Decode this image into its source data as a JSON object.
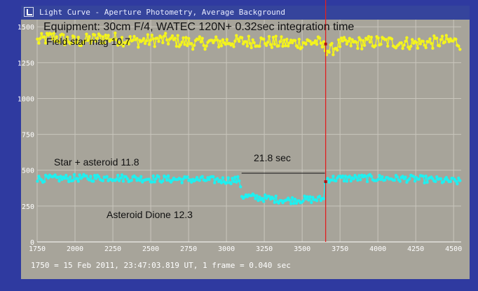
{
  "window": {
    "title": "Light Curve - Aperture Photometry, Average Background",
    "status": "1750 = 15 Feb 2011, 23:47:03.819 UT, 1 frame = 0.040 sec"
  },
  "chart_data": {
    "type": "scatter",
    "title": "Equipment: 30cm F/4,  WATEC 120N+    0.32sec integration time",
    "xlabel": "",
    "ylabel": "",
    "xlim": [
      1750,
      4550
    ],
    "ylim": [
      0,
      1550
    ],
    "x_ticks": [
      "1750",
      "2000",
      "2250",
      "2500",
      "2750",
      "3000",
      "3250",
      "3500",
      "3750",
      "4000",
      "4250",
      "4500"
    ],
    "y_ticks": [
      "0",
      "250",
      "500",
      "750",
      "1000",
      "1250",
      "1500"
    ],
    "grid": true,
    "colors": {
      "plot_bg": "#a7a49a",
      "grid": "#c9c6bd",
      "frame": "#2f3aa0",
      "comparison": "#f4f41c",
      "target": "#1ff0f0",
      "marker": "#e02020"
    },
    "series": [
      {
        "name": "",
        "points": [
          [
            1750,
            1400
          ],
          [
            1850,
            1430
          ],
          [
            2000,
            1395
          ],
          [
            2200,
            1425
          ],
          [
            2400,
            1400
          ],
          [
            2600,
            1410
          ],
          [
            2800,
            1385
          ],
          [
            3000,
            1395
          ],
          [
            3200,
            1400
          ],
          [
            3400,
            1385
          ],
          [
            3600,
            1395
          ],
          [
            3680,
            1330
          ],
          [
            3750,
            1380
          ],
          [
            4000,
            1395
          ],
          [
            4250,
            1385
          ],
          [
            4500,
            1400
          ],
          [
            4550,
            1380
          ]
        ],
        "noise": 45
      },
      {
        "name": "",
        "points": [
          [
            1750,
            440
          ],
          [
            2000,
            445
          ],
          [
            2250,
            448
          ],
          [
            2500,
            440
          ],
          [
            2750,
            435
          ],
          [
            3000,
            430
          ],
          [
            3090,
            432
          ],
          [
            3100,
            320
          ],
          [
            3250,
            305
          ],
          [
            3400,
            290
          ],
          [
            3500,
            295
          ],
          [
            3640,
            298
          ],
          [
            3655,
            440
          ],
          [
            3900,
            445
          ],
          [
            4250,
            440
          ],
          [
            4550,
            420
          ]
        ],
        "noise": 25
      }
    ],
    "annotations": {
      "field_star": "Field star mag 10.7",
      "star_plus_asteroid": "Star + asteroid  11.8",
      "duration": "21.8 sec",
      "asteroid": "Asteroid Dione  12.3"
    },
    "event_line_x": 3655,
    "event_marker_points": [
      [
        3655,
        1380
      ],
      [
        3655,
        420
      ]
    ],
    "duration_span": [
      3100,
      3650
    ]
  }
}
